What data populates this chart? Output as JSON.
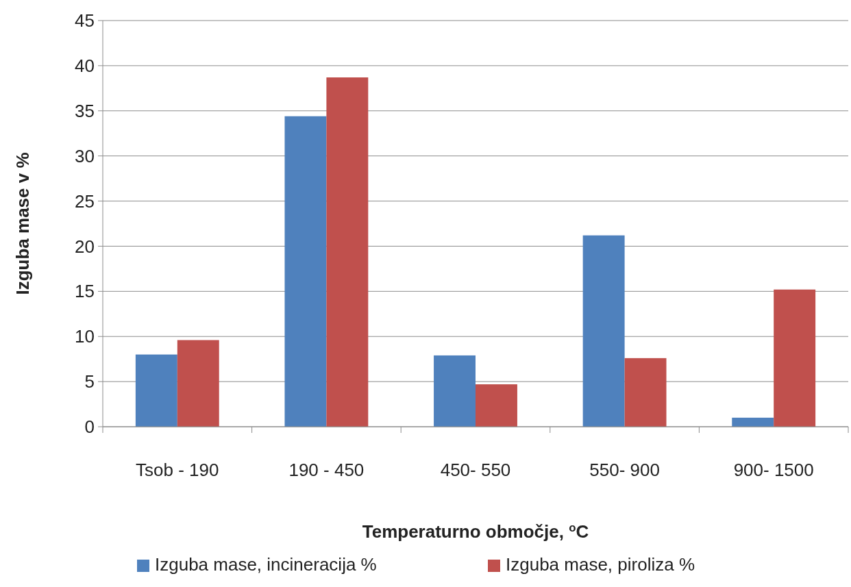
{
  "chart_data": {
    "type": "bar",
    "xlabel": "Temperaturno območje, $^{o}$C",
    "ylabel": "Izguba mase v %",
    "categories": [
      "Tsob - 190",
      "190 - 450",
      "450- 550",
      "550- 900",
      "900- 1500"
    ],
    "series": [
      {
        "name": "Izguba mase, incineracija %",
        "color": "#4f81bd",
        "values": [
          8.0,
          34.4,
          7.9,
          21.2,
          1.0
        ]
      },
      {
        "name": "Izguba mase, piroliza %",
        "color": "#c0504d",
        "values": [
          9.6,
          38.7,
          4.7,
          7.6,
          15.2
        ]
      }
    ],
    "ylim": [
      0,
      45
    ],
    "yticks": [
      0,
      5,
      10,
      15,
      20,
      25,
      30,
      35,
      40,
      45
    ],
    "grid": "y",
    "legend": "bottom"
  }
}
